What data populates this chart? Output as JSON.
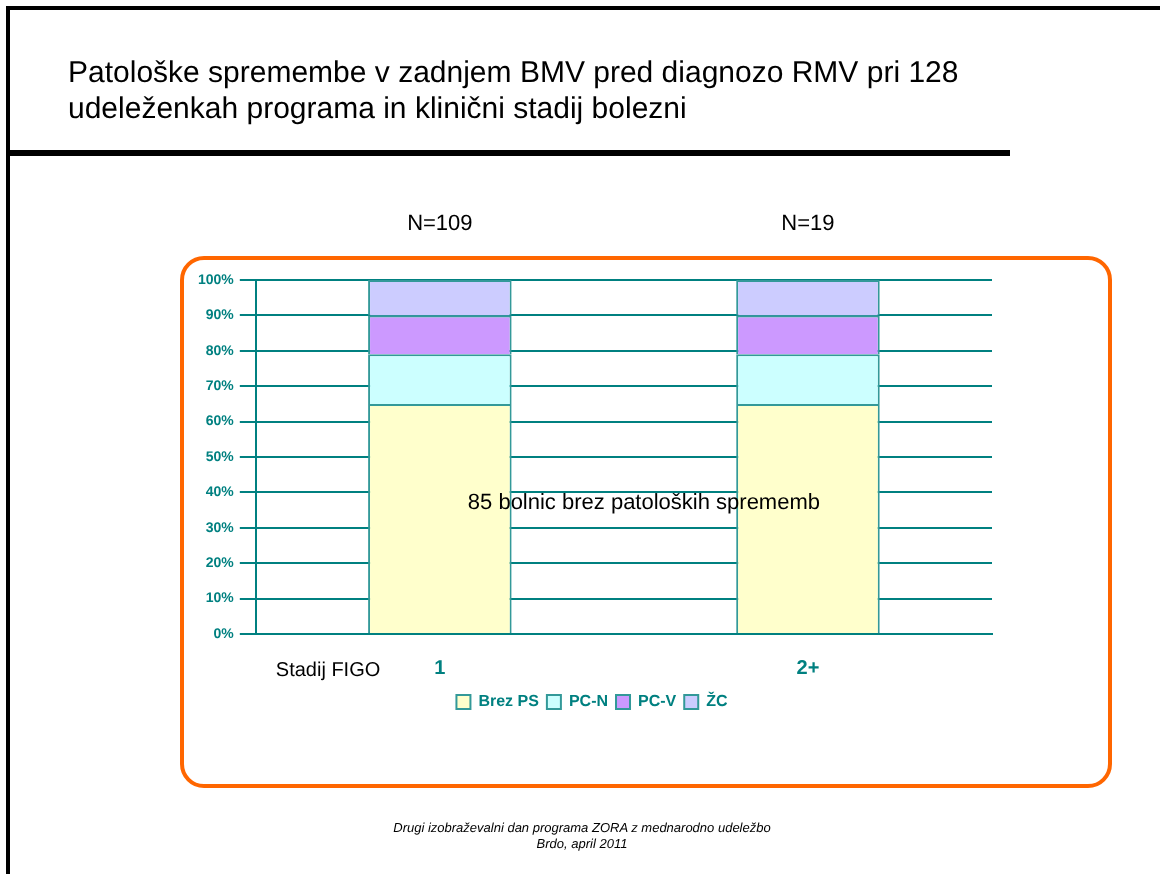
{
  "chart_data": {
    "type": "bar",
    "title": "Patološke spremembe v zadnjem BMV pred diagnozo RMV pri 128 udeleženkah programa in klinični stadij bolezni",
    "xlabel": "Stadij FIGO",
    "categories": [
      "1",
      "2+"
    ],
    "stacked": true,
    "series": [
      {
        "name": "Brez PS",
        "color": "#ffffcc",
        "values": [
          65,
          65
        ]
      },
      {
        "name": "PC-N",
        "color": "#ccffff",
        "values": [
          14,
          14
        ]
      },
      {
        "name": "PC-V",
        "color": "#cc99ff",
        "values": [
          11,
          11
        ]
      },
      {
        "name": "ŽC",
        "color": "#ccccff",
        "values": [
          10,
          10
        ]
      }
    ],
    "ylim": [
      0,
      100
    ],
    "yticks": [
      {
        "value": 0,
        "label": "0%"
      },
      {
        "value": 10,
        "label": "10%"
      },
      {
        "value": 20,
        "label": "20%"
      },
      {
        "value": 30,
        "label": "30%"
      },
      {
        "value": 40,
        "label": "40%"
      },
      {
        "value": 50,
        "label": "50%"
      },
      {
        "value": 60,
        "label": "60%"
      },
      {
        "value": 70,
        "label": "70%"
      },
      {
        "value": 80,
        "label": "80%"
      },
      {
        "value": 90,
        "label": "90%"
      },
      {
        "value": 100,
        "label": "100%"
      }
    ],
    "grid": "y",
    "legend": "bottom",
    "annotations": [
      "N=109",
      "N=19",
      "85 bolnic brez patoloških sprememb",
      "Drugi izobraževalni dan programa ZORA z mednarodno udeležbo",
      "Brdo, april 2011"
    ]
  }
}
